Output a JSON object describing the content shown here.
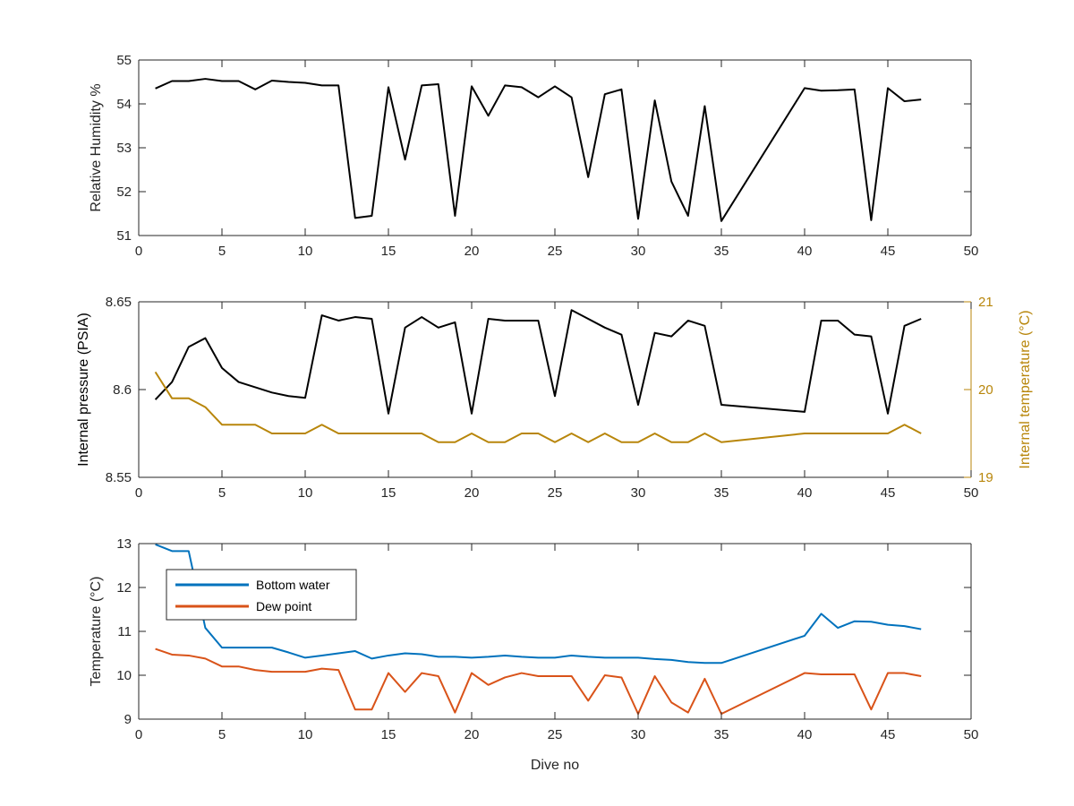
{
  "chart_data": [
    {
      "type": "line",
      "title": "",
      "xlabel": "",
      "ylabel": "Relative Humidity %",
      "xlim": [
        0,
        50
      ],
      "ylim": [
        51,
        55
      ],
      "xticks": [
        0,
        5,
        10,
        15,
        20,
        25,
        30,
        35,
        40,
        45,
        50
      ],
      "yticks": [
        51,
        52,
        53,
        54,
        55
      ],
      "series": [
        {
          "color": "#000000",
          "x": [
            1,
            2,
            3,
            4,
            5,
            6,
            7,
            8,
            9,
            10,
            11,
            12,
            13,
            14,
            15,
            16,
            17,
            18,
            19,
            20,
            21,
            22,
            23,
            24,
            25,
            26,
            27,
            28,
            29,
            30,
            31,
            32,
            33,
            34,
            35,
            40,
            41,
            42,
            43,
            44,
            45,
            46,
            47
          ],
          "values": [
            54.35,
            54.52,
            54.52,
            54.57,
            54.52,
            54.52,
            54.33,
            54.53,
            54.5,
            54.48,
            54.42,
            54.42,
            51.4,
            51.45,
            54.38,
            52.73,
            54.42,
            54.45,
            51.45,
            54.4,
            53.73,
            54.42,
            54.38,
            54.15,
            54.4,
            54.15,
            52.33,
            54.22,
            54.33,
            51.38,
            54.08,
            52.23,
            51.45,
            53.95,
            51.33,
            54.36,
            54.3,
            54.31,
            54.33,
            51.35,
            54.36,
            54.06,
            54.1
          ]
        }
      ]
    },
    {
      "type": "line",
      "title": "",
      "xlabel": "",
      "ylabel": "Internal pressure (PSIA)",
      "y2label": "Internal temperature (°C)",
      "xlim": [
        0,
        50
      ],
      "ylim": [
        8.55,
        8.65
      ],
      "y2lim": [
        19,
        21
      ],
      "xticks": [
        0,
        5,
        10,
        15,
        20,
        25,
        30,
        35,
        40,
        45,
        50
      ],
      "yticks": [
        8.55,
        8.6,
        8.65
      ],
      "y2ticks": [
        19,
        20,
        21
      ],
      "right_axis_color": "#b8860b",
      "series": [
        {
          "axis": "left",
          "color": "#000000",
          "x": [
            1,
            2,
            3,
            4,
            5,
            6,
            7,
            8,
            9,
            10,
            11,
            12,
            13,
            14,
            15,
            16,
            17,
            18,
            19,
            20,
            21,
            22,
            23,
            24,
            25,
            26,
            27,
            28,
            29,
            30,
            31,
            32,
            33,
            34,
            35,
            40,
            41,
            42,
            43,
            44,
            45,
            46,
            47
          ],
          "values": [
            8.5943,
            8.6043,
            8.6243,
            8.6293,
            8.6123,
            8.6043,
            8.6013,
            8.5983,
            8.5963,
            8.5953,
            8.6423,
            8.6393,
            8.6413,
            8.6403,
            8.5863,
            8.6353,
            8.6413,
            8.6353,
            8.6383,
            8.5863,
            8.6403,
            8.6393,
            8.6393,
            8.6393,
            8.5963,
            8.6453,
            8.6403,
            8.6353,
            8.6313,
            8.5913,
            8.6323,
            8.6303,
            8.6393,
            8.6363,
            8.5913,
            8.5873,
            8.6393,
            8.6393,
            8.6313,
            8.6303,
            8.5863,
            8.6363,
            8.6403
          ]
        },
        {
          "axis": "right",
          "color": "#b8860b",
          "x": [
            1,
            2,
            3,
            4,
            5,
            6,
            7,
            8,
            9,
            10,
            11,
            12,
            13,
            14,
            15,
            16,
            17,
            18,
            19,
            20,
            21,
            22,
            23,
            24,
            25,
            26,
            27,
            28,
            29,
            30,
            31,
            32,
            33,
            34,
            35,
            40,
            41,
            42,
            43,
            44,
            45,
            46,
            47
          ],
          "values": [
            20.2,
            19.9,
            19.9,
            19.8,
            19.6,
            19.6,
            19.6,
            19.5,
            19.5,
            19.5,
            19.6,
            19.5,
            19.5,
            19.5,
            19.5,
            19.5,
            19.5,
            19.4,
            19.4,
            19.5,
            19.4,
            19.4,
            19.5,
            19.5,
            19.4,
            19.5,
            19.4,
            19.5,
            19.4,
            19.4,
            19.5,
            19.4,
            19.4,
            19.5,
            19.4,
            19.5,
            19.5,
            19.5,
            19.5,
            19.5,
            19.5,
            19.6,
            19.5
          ]
        }
      ]
    },
    {
      "type": "line",
      "title": "",
      "xlabel": "Dive no",
      "ylabel": "Temperature (°C)",
      "xlim": [
        0,
        50
      ],
      "ylim": [
        9,
        13
      ],
      "xticks": [
        0,
        5,
        10,
        15,
        20,
        25,
        30,
        35,
        40,
        45,
        50
      ],
      "yticks": [
        9,
        10,
        11,
        12,
        13
      ],
      "legend": "top-left",
      "series": [
        {
          "name": "Bottom water",
          "color": "#0072bd",
          "x": [
            1,
            2,
            3,
            4,
            5,
            6,
            7,
            8,
            9,
            10,
            11,
            12,
            13,
            14,
            15,
            16,
            17,
            18,
            19,
            20,
            21,
            22,
            23,
            24,
            25,
            26,
            27,
            28,
            29,
            30,
            31,
            32,
            33,
            34,
            35,
            40,
            41,
            42,
            43,
            44,
            45,
            46,
            47
          ],
          "values": [
            12.98,
            12.83,
            12.83,
            11.08,
            10.63,
            10.63,
            10.63,
            10.63,
            10.52,
            10.4,
            10.45,
            10.5,
            10.55,
            10.38,
            10.45,
            10.5,
            10.48,
            10.42,
            10.42,
            10.4,
            10.42,
            10.45,
            10.42,
            10.4,
            10.4,
            10.45,
            10.42,
            10.4,
            10.4,
            10.4,
            10.37,
            10.35,
            10.3,
            10.28,
            10.28,
            10.9,
            11.4,
            11.08,
            11.23,
            11.22,
            11.15,
            11.12,
            11.05
          ]
        },
        {
          "name": "Dew point",
          "color": "#d95319",
          "x": [
            1,
            2,
            3,
            4,
            5,
            6,
            7,
            8,
            9,
            10,
            11,
            12,
            13,
            14,
            15,
            16,
            17,
            18,
            19,
            20,
            21,
            22,
            23,
            24,
            25,
            26,
            27,
            28,
            29,
            30,
            31,
            32,
            33,
            34,
            35,
            40,
            41,
            42,
            43,
            44,
            45,
            46,
            47
          ],
          "values": [
            10.6,
            10.47,
            10.45,
            10.38,
            10.2,
            10.2,
            10.12,
            10.08,
            10.08,
            10.08,
            10.15,
            10.12,
            9.22,
            9.22,
            10.05,
            9.62,
            10.05,
            9.98,
            9.15,
            10.05,
            9.78,
            9.95,
            10.05,
            9.98,
            9.98,
            9.98,
            9.42,
            10.0,
            9.95,
            9.12,
            9.98,
            9.38,
            9.15,
            9.92,
            9.12,
            10.05,
            10.02,
            10.02,
            10.02,
            9.22,
            10.05,
            10.05,
            9.98
          ]
        }
      ]
    }
  ]
}
